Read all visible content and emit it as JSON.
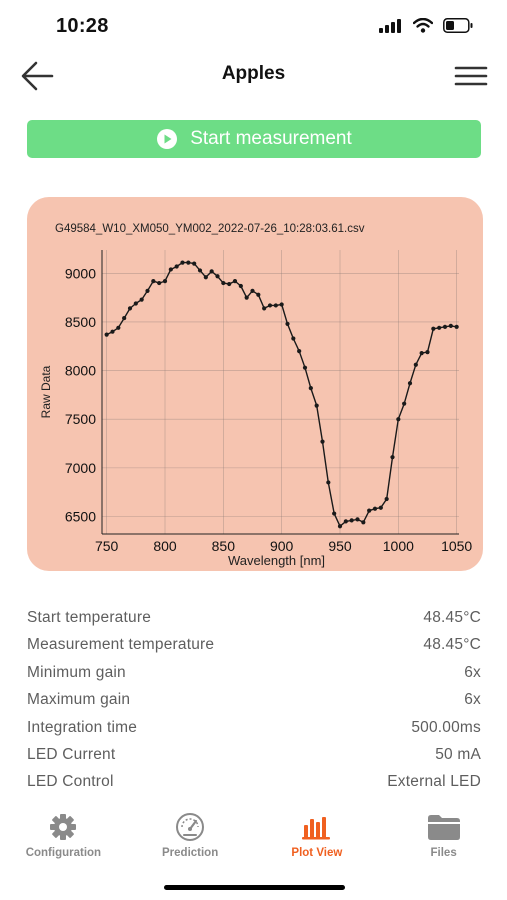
{
  "status_bar": {
    "time": "10:28"
  },
  "header": {
    "title": "Apples"
  },
  "start_button": {
    "label": "Start measurement"
  },
  "chart_data": {
    "type": "line",
    "title": "G49584_W10_XM050_YM002_2022-07-26_10:28:03.61.csv",
    "xlabel": "Wavelength [nm]",
    "ylabel": "Raw Data",
    "xlim": [
      746,
      1052
    ],
    "ylim": [
      6320,
      9240
    ],
    "xticks": [
      750,
      800,
      850,
      900,
      950,
      1000,
      1050
    ],
    "xtick_labels": [
      "750",
      "800",
      "850",
      "900",
      "950",
      "1000",
      "1050"
    ],
    "yticks": [
      6500,
      7000,
      7500,
      8000,
      8500,
      9000
    ],
    "grid": true,
    "color": "#1a1a1a",
    "x": [
      750,
      755,
      760,
      765,
      770,
      775,
      780,
      785,
      790,
      795,
      800,
      805,
      810,
      815,
      820,
      825,
      830,
      835,
      840,
      845,
      850,
      855,
      860,
      865,
      870,
      875,
      880,
      885,
      890,
      895,
      900,
      905,
      910,
      915,
      920,
      925,
      930,
      935,
      940,
      945,
      950,
      955,
      960,
      965,
      970,
      975,
      980,
      985,
      990,
      995,
      1000,
      1005,
      1010,
      1015,
      1020,
      1025,
      1030,
      1035,
      1040,
      1045,
      1050
    ],
    "y": [
      8370,
      8400,
      8440,
      8540,
      8640,
      8690,
      8730,
      8820,
      8920,
      8900,
      8920,
      9040,
      9070,
      9110,
      9110,
      9100,
      9030,
      8960,
      9020,
      8970,
      8900,
      8890,
      8920,
      8870,
      8750,
      8820,
      8780,
      8640,
      8670,
      8670,
      8680,
      8480,
      8330,
      8200,
      8030,
      7820,
      7640,
      7270,
      6850,
      6530,
      6400,
      6450,
      6460,
      6470,
      6440,
      6560,
      6580,
      6590,
      6680,
      7110,
      7500,
      7660,
      7870,
      8060,
      8180,
      8190,
      8430,
      8440,
      8450,
      8460,
      8450
    ]
  },
  "info": [
    {
      "label": "Start temperature",
      "value": "48.45°C"
    },
    {
      "label": "Measurement temperature",
      "value": "48.45°C"
    },
    {
      "label": "Minimum gain",
      "value": "6x"
    },
    {
      "label": "Maximum gain",
      "value": "6x"
    },
    {
      "label": "Integration time",
      "value": "500.00ms"
    },
    {
      "label": "LED Current",
      "value": "50 mA"
    },
    {
      "label": "LED Control",
      "value": "External LED"
    }
  ],
  "tabs": [
    {
      "label": "Configuration",
      "icon": "gear-icon"
    },
    {
      "label": "Prediction",
      "icon": "gauge-icon"
    },
    {
      "label": "Plot View",
      "icon": "bar-chart-icon",
      "active": true
    },
    {
      "label": "Files",
      "icon": "folder-icon"
    }
  ],
  "colors": {
    "accent": "#f06020",
    "start_button": "#6ddd86",
    "chart_card": "#f6c4b0"
  }
}
